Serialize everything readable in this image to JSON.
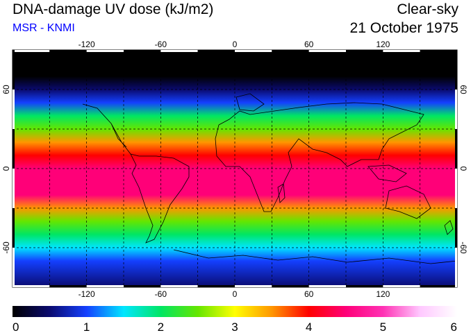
{
  "header": {
    "title": "DNA-damage UV dose (kJ/m2)",
    "subtitle": "MSR - KNMI",
    "condition": "Clear-sky",
    "date": "21 October 1975"
  },
  "colors": {
    "subtitle": "#0000ff",
    "scale": [
      "#000000",
      "#0a0a6e",
      "#1440ff",
      "#00e6ff",
      "#00e664",
      "#64e600",
      "#ffff00",
      "#ff9600",
      "#ff0000",
      "#ff0078",
      "#ff32b4",
      "#ffc8ff",
      "#ffffff"
    ]
  },
  "map": {
    "projection": "equirectangular",
    "lon_range": [
      -180,
      180
    ],
    "lat_range": [
      -90,
      90
    ],
    "grid_lons": [
      -150,
      -120,
      -90,
      -60,
      -30,
      0,
      30,
      60,
      90,
      120,
      150
    ],
    "grid_lats": [
      -60,
      -30,
      0,
      30,
      60
    ],
    "lon_ticks": [
      "-120",
      "-60",
      "0",
      "60",
      "120"
    ],
    "lon_tick_values": [
      -120,
      -60,
      0,
      60,
      120
    ],
    "lat_ticks": [
      "60",
      "0",
      "-60"
    ],
    "lat_tick_values": [
      60,
      0,
      -60
    ],
    "dose_profile": {
      "lat": [
        90,
        70,
        60,
        50,
        40,
        30,
        20,
        10,
        0,
        -10,
        -20,
        -30,
        -40,
        -50,
        -60,
        -70,
        -90
      ],
      "dose": [
        0,
        0.1,
        0.5,
        1.1,
        1.9,
        2.6,
        3.4,
        4.0,
        4.5,
        4.7,
        4.4,
        3.5,
        2.5,
        1.9,
        1.4,
        0.9,
        0.3
      ]
    }
  },
  "colorbar": {
    "min": 0,
    "max": 6,
    "labels": [
      "0",
      "1",
      "2",
      "3",
      "4",
      "5",
      "6"
    ],
    "values": [
      0,
      1,
      2,
      3,
      4,
      5,
      6
    ]
  }
}
